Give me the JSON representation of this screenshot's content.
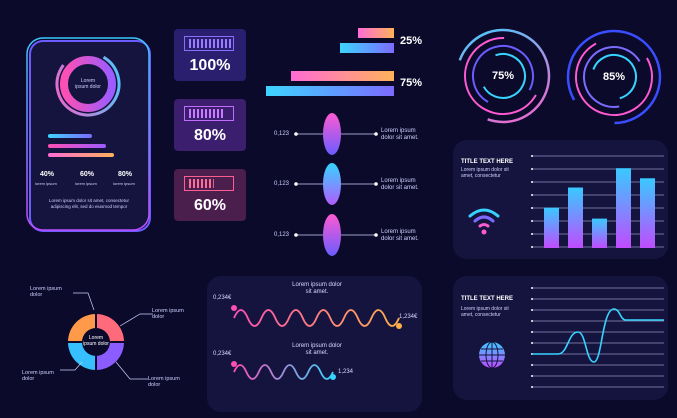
{
  "phone": {
    "donut_center": "Lorem\nipsum dolor",
    "stats": [
      {
        "value": "40%",
        "caption": "lorem ipsum"
      },
      {
        "value": "60%",
        "caption": "lorem ipsum"
      },
      {
        "value": "80%",
        "caption": "lorem ipsum"
      }
    ],
    "footer": "Lorem ipsum dolor sit amet, consectetur adipiscing elit, sed do eiusmod tempor"
  },
  "battery_cards": [
    {
      "label": "100%",
      "level": 1.0,
      "color": "#8a6cff"
    },
    {
      "label": "80%",
      "level": 0.8,
      "color": "#c16cff"
    },
    {
      "label": "60%",
      "level": 0.6,
      "color": "#ff5d8f"
    }
  ],
  "progress_bars": [
    {
      "label": "25%",
      "value": 0.25
    },
    {
      "label": "75%",
      "value": 0.75
    }
  ],
  "rings": [
    {
      "label": "75%",
      "value": 0.75
    },
    {
      "label": "85%",
      "value": 0.85
    }
  ],
  "lenses": [
    {
      "left": "0,123",
      "right": "Lorem ipsum\ndolor sit amet."
    },
    {
      "left": "0,123",
      "right": "Lorem ipsum\ndolor sit amet."
    },
    {
      "left": "0,123",
      "right": "Lorem ipsum\ndolor sit amet."
    }
  ],
  "bar_card": {
    "title": "TITLE TEXT HERE",
    "subtitle": "Lorem ipsum dolor sit\namet, consectetur",
    "icon": "wifi-icon",
    "values": [
      0.48,
      0.72,
      0.35,
      0.95,
      0.83
    ]
  },
  "segment_donut": {
    "center": "Lorem\nipsum dolor",
    "labels": [
      "Lorem ipsum\ndolor",
      "Lorem ipsum\ndolor",
      "Lorem ipsum\ndolor",
      "Lorem ipsum\ndolor"
    ]
  },
  "waves": {
    "top": {
      "title": "Lorem ipsum dolor\nsit amet.",
      "start": "0,234€",
      "end": "1,234€"
    },
    "bottom": {
      "title": "Lorem ipsum dolor\nsit amet.",
      "start": "0,234€",
      "end": "1,234"
    }
  },
  "line_card": {
    "title": "TITLE TEXT HERE",
    "subtitle": "Lorem ipsum dolor sit\namet, consectetur",
    "icon": "globe-icon"
  }
}
